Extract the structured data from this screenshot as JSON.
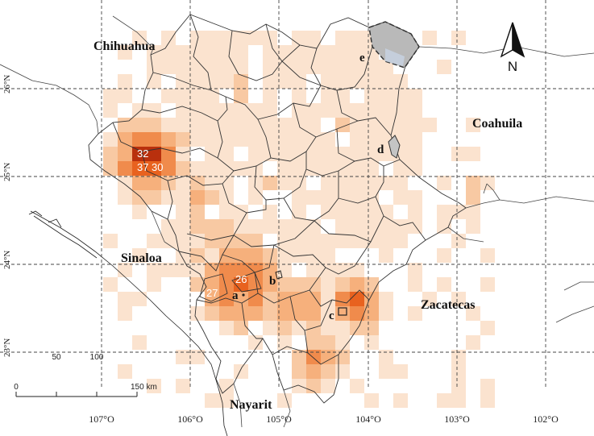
{
  "map": {
    "regions": [
      {
        "key": "chihuahua",
        "label": "Chihuahua"
      },
      {
        "key": "coahuila",
        "label": "Coahuila"
      },
      {
        "key": "sinaloa",
        "label": "Sinaloa"
      },
      {
        "key": "zacatecas",
        "label": "Zacatecas"
      },
      {
        "key": "nayarit",
        "label": "Nayarit"
      }
    ],
    "sites": [
      {
        "key": "a",
        "label": "a"
      },
      {
        "key": "b",
        "label": "b"
      },
      {
        "key": "c",
        "label": "c"
      },
      {
        "key": "d",
        "label": "d"
      },
      {
        "key": "e",
        "label": "e"
      }
    ],
    "cell_values": [
      {
        "key": "v32",
        "label": "32"
      },
      {
        "key": "v37",
        "label": "37"
      },
      {
        "key": "v30",
        "label": "30"
      },
      {
        "key": "v26",
        "label": "26"
      },
      {
        "key": "v27",
        "label": "27"
      }
    ],
    "lat_labels": [
      "26°N",
      "25°N",
      "24°N",
      "23°N"
    ],
    "lon_labels": [
      "107°O",
      "106°O",
      "105°O",
      "104°O",
      "103°O",
      "102°O"
    ],
    "north_arrow_label": "N",
    "scale_bar": {
      "tick_labels": [
        "0",
        "50",
        "100",
        "150 km"
      ]
    },
    "colors": {
      "grid": "#444444",
      "boundary": "#333333",
      "heat_low": "#fbe3cf",
      "heat_mid": "#f6b07c",
      "heat_high": "#e8621f",
      "heat_max": "#b9300d",
      "protected_area": "#b9b9b9"
    }
  }
}
